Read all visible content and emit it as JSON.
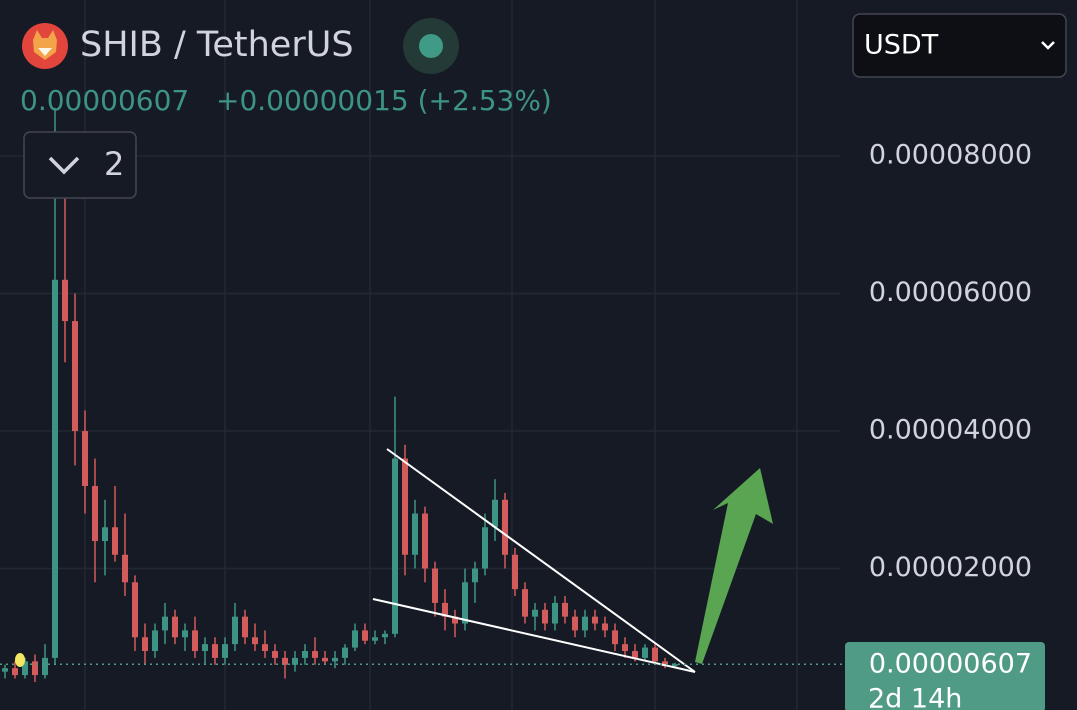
{
  "header": {
    "symbol": "SHIB / TetherUS",
    "price": "0.00000607",
    "change": "+0.00000015 (+2.53%)",
    "indicator_count": 2,
    "currency": "USDT"
  },
  "chart_data": {
    "type": "candlestick",
    "colors": {
      "up": "#3d9484",
      "down": "#d45b5b"
    },
    "ylim": [
      -5.8e-07,
      0.0001027
    ],
    "yticks": [
      {
        "value": 2e-05,
        "label": "0.00002000"
      },
      {
        "value": 4e-05,
        "label": "0.00004000"
      },
      {
        "value": 6e-05,
        "label": "0.00006000"
      },
      {
        "value": 8e-05,
        "label": "0.00008000"
      }
    ],
    "grid": true,
    "last_price": {
      "value": 6.07e-06,
      "label": "0.00000607"
    },
    "countdown": "2d 14h",
    "candles": [
      [
        5e-06,
        6e-06,
        4e-06,
        5.5e-06
      ],
      [
        5.5e-06,
        6.5e-06,
        4e-06,
        4.5e-06
      ],
      [
        4.5e-06,
        7e-06,
        4e-06,
        6.5e-06
      ],
      [
        6.5e-06,
        7.5e-06,
        3.5e-06,
        4.5e-06
      ],
      [
        4.5e-06,
        9e-06,
        4e-06,
        7e-06
      ],
      [
        7e-06,
        8.7e-05,
        6e-06,
        6.2e-05
      ],
      [
        6.2e-05,
        7.8e-05,
        5e-05,
        5.6e-05
      ],
      [
        5.6e-05,
        6e-05,
        3.5e-05,
        4e-05
      ],
      [
        4e-05,
        4.3e-05,
        2.8e-05,
        3.2e-05
      ],
      [
        3.2e-05,
        3.6e-05,
        1.8e-05,
        2.4e-05
      ],
      [
        2.4e-05,
        3e-05,
        1.9e-05,
        2.6e-05
      ],
      [
        2.6e-05,
        3.2e-05,
        2.1e-05,
        2.2e-05
      ],
      [
        2.2e-05,
        2.8e-05,
        1.6e-05,
        1.8e-05
      ],
      [
        1.8e-05,
        1.9e-05,
        8e-06,
        1e-05
      ],
      [
        1e-05,
        1.2e-05,
        6e-06,
        8e-06
      ],
      [
        8e-06,
        1.2e-05,
        7e-06,
        1.1e-05
      ],
      [
        1.1e-05,
        1.5e-05,
        9e-06,
        1.3e-05
      ],
      [
        1.3e-05,
        1.4e-05,
        9e-06,
        1e-05
      ],
      [
        1e-05,
        1.2e-05,
        8e-06,
        1.1e-05
      ],
      [
        1.1e-05,
        1.3e-05,
        7e-06,
        8e-06
      ],
      [
        8e-06,
        1e-05,
        6e-06,
        9e-06
      ],
      [
        9e-06,
        1e-05,
        6e-06,
        7e-06
      ],
      [
        7e-06,
        1e-05,
        6e-06,
        9e-06
      ],
      [
        9e-06,
        1.5e-05,
        8e-06,
        1.3e-05
      ],
      [
        1.3e-05,
        1.4e-05,
        9e-06,
        1e-05
      ],
      [
        1e-05,
        1.2e-05,
        8e-06,
        9e-06
      ],
      [
        9e-06,
        1.1e-05,
        7e-06,
        8e-06
      ],
      [
        8e-06,
        9e-06,
        6e-06,
        7e-06
      ],
      [
        7e-06,
        8e-06,
        4e-06,
        6e-06
      ],
      [
        6e-06,
        8e-06,
        5e-06,
        7e-06
      ],
      [
        7e-06,
        9e-06,
        6e-06,
        8e-06
      ],
      [
        8e-06,
        1e-05,
        6e-06,
        7e-06
      ],
      [
        7e-06,
        8e-06,
        6e-06,
        6.5e-06
      ],
      [
        6.5e-06,
        8e-06,
        5.5e-06,
        7e-06
      ],
      [
        7e-06,
        9e-06,
        6e-06,
        8.5e-06
      ],
      [
        8.5e-06,
        1.2e-05,
        8e-06,
        1.1e-05
      ],
      [
        1.1e-05,
        1.2e-05,
        9e-06,
        9.5e-06
      ],
      [
        9.5e-06,
        1.1e-05,
        9e-06,
        1e-05
      ],
      [
        1e-05,
        1.1e-05,
        9e-06,
        1.05e-05
      ],
      [
        1.05e-05,
        4.5e-05,
        1e-05,
        3.6e-05
      ],
      [
        3.6e-05,
        3.8e-05,
        1.9e-05,
        2.2e-05
      ],
      [
        2.2e-05,
        3e-05,
        2e-05,
        2.8e-05
      ],
      [
        2.8e-05,
        2.9e-05,
        1.8e-05,
        2e-05
      ],
      [
        2e-05,
        2.1e-05,
        1.3e-05,
        1.5e-05
      ],
      [
        1.5e-05,
        1.7e-05,
        1.1e-05,
        1.3e-05
      ],
      [
        1.3e-05,
        1.4e-05,
        1e-05,
        1.2e-05
      ],
      [
        1.2e-05,
        2e-05,
        1.1e-05,
        1.8e-05
      ],
      [
        1.8e-05,
        2.1e-05,
        1.5e-05,
        2e-05
      ],
      [
        2e-05,
        2.8e-05,
        1.9e-05,
        2.6e-05
      ],
      [
        2.6e-05,
        3.3e-05,
        2.4e-05,
        3e-05
      ],
      [
        3e-05,
        3.1e-05,
        2e-05,
        2.2e-05
      ],
      [
        2.2e-05,
        2.3e-05,
        1.6e-05,
        1.7e-05
      ],
      [
        1.7e-05,
        1.8e-05,
        1.2e-05,
        1.3e-05
      ],
      [
        1.3e-05,
        1.5e-05,
        1.1e-05,
        1.4e-05
      ],
      [
        1.4e-05,
        1.5e-05,
        1.1e-05,
        1.2e-05
      ],
      [
        1.2e-05,
        1.6e-05,
        1.1e-05,
        1.5e-05
      ],
      [
        1.5e-05,
        1.6e-05,
        1.2e-05,
        1.3e-05
      ],
      [
        1.3e-05,
        1.4e-05,
        1e-05,
        1.1e-05
      ],
      [
        1.1e-05,
        1.4e-05,
        1e-05,
        1.3e-05
      ],
      [
        1.3e-05,
        1.4e-05,
        1.1e-05,
        1.2e-05
      ],
      [
        1.2e-05,
        1.3e-05,
        1e-05,
        1.1e-05
      ],
      [
        1.1e-05,
        1.2e-05,
        8e-06,
        9e-06
      ],
      [
        9e-06,
        1e-05,
        7e-06,
        8e-06
      ],
      [
        8e-06,
        9e-06,
        6.5e-06,
        7e-06
      ],
      [
        7e-06,
        9e-06,
        6.5e-06,
        8.5e-06
      ],
      [
        8.5e-06,
        9e-06,
        6e-06,
        6.5e-06
      ],
      [
        6.5e-06,
        7e-06,
        5.5e-06,
        5.8e-06
      ],
      [
        5.8e-06,
        6.3e-06,
        5.5e-06,
        6.07e-06
      ]
    ]
  }
}
